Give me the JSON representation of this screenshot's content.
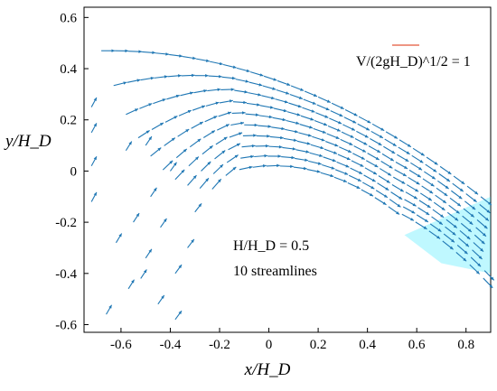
{
  "chart_data": {
    "type": "quiver",
    "xlabel": "x/H_D",
    "ylabel": "y/H_D",
    "xlim": [
      -0.75,
      0.9
    ],
    "ylim": [
      -0.63,
      0.64
    ],
    "xticks": [
      "-0.6",
      "-0.4",
      "-0.2",
      "0",
      "0.2",
      "0.4",
      "0.6",
      "0.8"
    ],
    "yticks": [
      "0.6",
      "0.4",
      "0.2",
      "0",
      "-0.2",
      "-0.4",
      "-0.6"
    ],
    "grid": false,
    "streamline_count": 10,
    "colors": {
      "arrows": "#1f77b4",
      "reference": "#e8735a",
      "residue": "#00e5ff"
    },
    "reference_vector": {
      "label": "V/(2gH_D)^1/2 = 1",
      "magnitude": 1
    },
    "annotations": {
      "head_ratio": "H/H_D = 0.5",
      "streamlines": "10 streamlines"
    }
  }
}
